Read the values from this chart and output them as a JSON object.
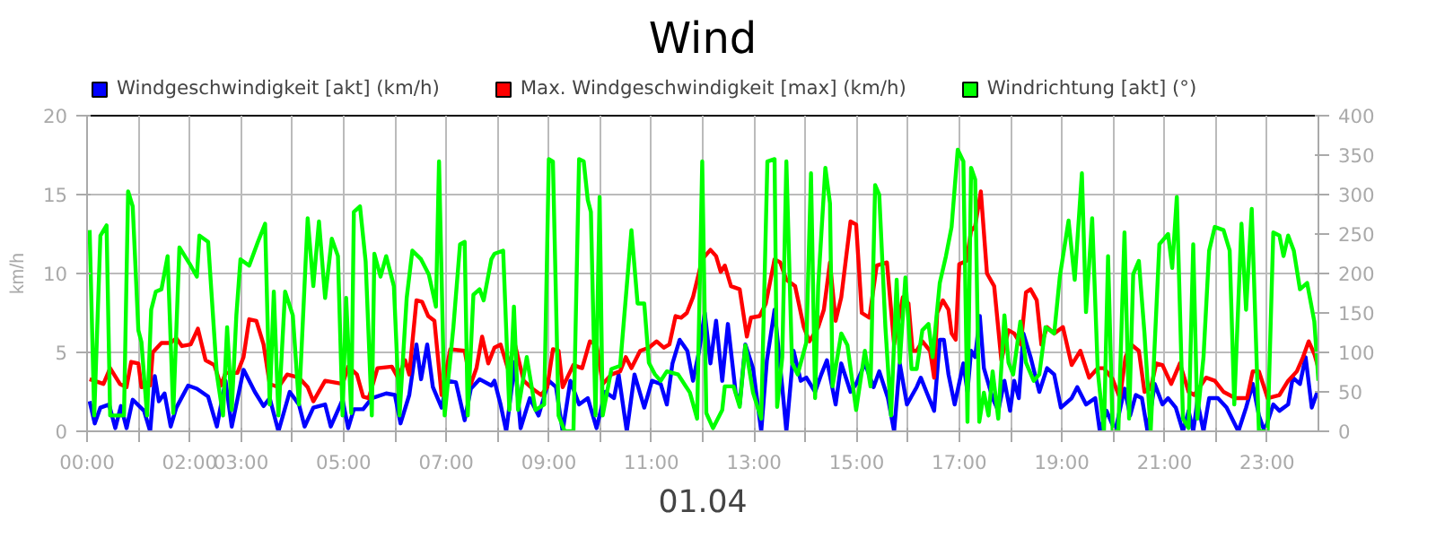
{
  "chart_data": {
    "type": "line",
    "title": "Wind",
    "xlabel": "01.04",
    "ylabel": "km/h",
    "xlim": [
      0,
      24
    ],
    "xticks": [
      {
        "value": 0,
        "label": "00:00"
      },
      {
        "value": 1,
        "label": null
      },
      {
        "value": 2,
        "label": "02:00"
      },
      {
        "value": 3,
        "label": "03:00"
      },
      {
        "value": 4,
        "label": null
      },
      {
        "value": 5,
        "label": "05:00"
      },
      {
        "value": 6,
        "label": null
      },
      {
        "value": 7,
        "label": "07:00"
      },
      {
        "value": 8,
        "label": null
      },
      {
        "value": 9,
        "label": "09:00"
      },
      {
        "value": 10,
        "label": null
      },
      {
        "value": 11,
        "label": "11:00"
      },
      {
        "value": 12,
        "label": null
      },
      {
        "value": 13,
        "label": "13:00"
      },
      {
        "value": 14,
        "label": null
      },
      {
        "value": 15,
        "label": "15:00"
      },
      {
        "value": 16,
        "label": null
      },
      {
        "value": 17,
        "label": "17:00"
      },
      {
        "value": 18,
        "label": null
      },
      {
        "value": 19,
        "label": "19:00"
      },
      {
        "value": 20,
        "label": null
      },
      {
        "value": 21,
        "label": "21:00"
      },
      {
        "value": 22,
        "label": null
      },
      {
        "value": 23,
        "label": "23:00"
      }
    ],
    "ylim": [
      0,
      20
    ],
    "yticks": [
      0,
      5,
      10,
      15,
      20
    ],
    "y2lim": [
      0,
      400
    ],
    "y2ticks": [
      0,
      50,
      100,
      150,
      200,
      250,
      300,
      350,
      400
    ],
    "grid": true,
    "legend": "top left",
    "line_style": "solid",
    "series": [
      {
        "name": "Windgeschwindigkeit [akt] (km/h)",
        "color": "#0000ff",
        "x": [
          0.05,
          0.15,
          0.26,
          0.43,
          0.55,
          0.66,
          0.77,
          0.89,
          1.11,
          1.23,
          1.32,
          1.4,
          1.51,
          1.63,
          1.74,
          1.97,
          2.14,
          2.36,
          2.53,
          2.7,
          2.82,
          3.05,
          3.27,
          3.44,
          3.56,
          3.73,
          3.95,
          4.13,
          4.24,
          4.41,
          4.64,
          4.75,
          4.98,
          5.09,
          5.2,
          5.38,
          5.55,
          5.83,
          6.0,
          6.11,
          6.28,
          6.42,
          6.51,
          6.63,
          6.74,
          6.91,
          7.02,
          7.19,
          7.36,
          7.48,
          7.65,
          7.88,
          7.94,
          8.06,
          8.17,
          8.34,
          8.45,
          8.63,
          8.8,
          9.0,
          9.14,
          9.27,
          9.42,
          9.59,
          9.76,
          9.93,
          10.1,
          10.27,
          10.36,
          10.52,
          10.67,
          10.86,
          11.01,
          11.18,
          11.3,
          11.41,
          11.55,
          11.7,
          11.81,
          11.93,
          12.04,
          12.15,
          12.26,
          12.38,
          12.49,
          12.64,
          12.72,
          12.83,
          12.98,
          13.14,
          13.25,
          13.4,
          13.55,
          13.63,
          13.77,
          13.91,
          14.02,
          14.19,
          14.31,
          14.42,
          14.59,
          14.7,
          14.88,
          14.99,
          15.16,
          15.33,
          15.44,
          15.61,
          15.73,
          15.84,
          15.98,
          16.17,
          16.25,
          16.36,
          16.51,
          16.62,
          16.7,
          16.79,
          16.91,
          17.08,
          17.16,
          17.23,
          17.31,
          17.4,
          17.48,
          17.65,
          17.76,
          17.88,
          17.99,
          18.07,
          18.16,
          18.25,
          18.39,
          18.56,
          18.71,
          18.85,
          18.98,
          19.19,
          19.3,
          19.47,
          19.65,
          19.74,
          19.87,
          20.04,
          20.22,
          20.33,
          20.44,
          20.56,
          20.67,
          20.81,
          20.96,
          21.07,
          21.22,
          21.36,
          21.47,
          21.56,
          21.64,
          21.76,
          21.87,
          22.04,
          22.21,
          22.44,
          22.59,
          22.72,
          22.84,
          22.95,
          23.12,
          23.24,
          23.41,
          23.5,
          23.64,
          23.75,
          23.87,
          23.98
        ],
        "values": [
          1.9,
          0.5,
          1.5,
          1.7,
          0.2,
          1.6,
          0.2,
          2.0,
          1.3,
          0,
          3.5,
          1.9,
          2.4,
          0.3,
          1.5,
          2.9,
          2.7,
          2.2,
          0.3,
          3.2,
          0.3,
          3.9,
          2.5,
          1.6,
          2.1,
          0,
          2.5,
          1.7,
          0.3,
          1.5,
          1.7,
          0.3,
          2.0,
          0.2,
          1.4,
          1.4,
          2.1,
          2.4,
          2.3,
          0.5,
          2.3,
          5.5,
          3.3,
          5.5,
          2.8,
          1.5,
          3.2,
          3.1,
          0.7,
          2.7,
          3.3,
          2.9,
          3.2,
          1.7,
          0,
          4.4,
          0.2,
          2.1,
          1.0,
          3.2,
          2.8,
          0,
          3.2,
          1.7,
          2.1,
          0.2,
          2.5,
          2.1,
          3.6,
          0,
          3.6,
          1.5,
          3.2,
          3.0,
          1.7,
          4.3,
          5.8,
          5.1,
          3.2,
          5.1,
          7.5,
          4.3,
          7.0,
          3.2,
          6.8,
          2.5,
          1.7,
          5.5,
          4.0,
          0,
          4.5,
          7.7,
          2.8,
          0,
          5.1,
          3.2,
          3.4,
          2.5,
          3.6,
          4.5,
          1.7,
          4.3,
          2.5,
          3.0,
          4.3,
          2.8,
          3.8,
          2.1,
          0,
          4.3,
          1.7,
          2.8,
          3.4,
          2.5,
          1.3,
          5.8,
          5.8,
          3.6,
          1.7,
          4.3,
          2.5,
          5.1,
          4.7,
          7.3,
          4.0,
          2.1,
          1.3,
          3.2,
          1.3,
          3.2,
          2.1,
          6.2,
          4.7,
          2.5,
          4.0,
          3.6,
          1.5,
          2.1,
          2.8,
          1.7,
          2.1,
          0,
          1.3,
          0,
          2.7,
          1.0,
          2.3,
          2.1,
          0,
          3.0,
          1.7,
          2.1,
          1.5,
          0,
          1.3,
          0,
          1.9,
          0,
          2.1,
          2.1,
          1.5,
          0,
          1.5,
          3.0,
          1.0,
          0,
          1.7,
          1.3,
          1.7,
          3.4,
          3.0,
          4.7,
          1.5,
          2.5
        ]
      },
      {
        "name": "Max. Windgeschwindigkeit [max] (km/h)",
        "color": "#ff0000",
        "x": [
          0.05,
          0.32,
          0.45,
          0.64,
          0.77,
          0.86,
          1.0,
          1.06,
          1.23,
          1.28,
          1.45,
          1.63,
          1.74,
          1.85,
          2.02,
          2.16,
          2.31,
          2.48,
          2.61,
          2.7,
          2.93,
          3.05,
          3.16,
          3.3,
          3.44,
          3.56,
          3.73,
          3.9,
          4.13,
          4.3,
          4.41,
          4.64,
          4.81,
          4.98,
          5.09,
          5.26,
          5.38,
          5.49,
          5.66,
          5.94,
          6.06,
          6.2,
          6.28,
          6.42,
          6.53,
          6.65,
          6.77,
          6.91,
          7.08,
          7.36,
          7.48,
          7.59,
          7.7,
          7.82,
          7.94,
          8.06,
          8.2,
          8.34,
          8.51,
          8.68,
          8.85,
          8.97,
          9.08,
          9.19,
          9.27,
          9.48,
          9.65,
          9.8,
          9.93,
          10.05,
          10.22,
          10.39,
          10.5,
          10.61,
          10.78,
          10.95,
          11.1,
          11.24,
          11.35,
          11.47,
          11.58,
          11.69,
          11.81,
          11.99,
          12.15,
          12.26,
          12.35,
          12.43,
          12.55,
          12.72,
          12.86,
          12.94,
          13.11,
          13.23,
          13.4,
          13.51,
          13.63,
          13.8,
          13.97,
          14.08,
          14.25,
          14.36,
          14.48,
          14.59,
          14.7,
          14.88,
          14.99,
          15.1,
          15.25,
          15.39,
          15.59,
          15.73,
          15.9,
          16.01,
          16.09,
          16.17,
          16.28,
          16.43,
          16.51,
          16.57,
          16.68,
          16.79,
          16.85,
          16.93,
          17.0,
          17.14,
          17.23,
          17.31,
          17.42,
          17.54,
          17.68,
          17.82,
          17.96,
          18.07,
          18.2,
          18.3,
          18.39,
          18.51,
          18.6,
          18.71,
          18.85,
          19.02,
          19.19,
          19.36,
          19.53,
          19.7,
          19.82,
          19.99,
          20.13,
          20.24,
          20.35,
          20.5,
          20.61,
          20.73,
          20.84,
          20.96,
          21.13,
          21.3,
          21.47,
          21.58,
          21.81,
          21.98,
          22.15,
          22.38,
          22.61,
          22.72,
          22.84,
          23.01,
          23.24,
          23.41,
          23.58,
          23.7,
          23.81,
          23.92,
          24.0
        ],
        "values": [
          3.3,
          3.0,
          4.0,
          3.0,
          2.8,
          4.4,
          4.3,
          2.8,
          2.9,
          5.0,
          5.6,
          5.6,
          5.9,
          5.4,
          5.5,
          6.5,
          4.5,
          4.2,
          2.9,
          3.7,
          3.7,
          4.7,
          7.1,
          7.0,
          5.5,
          3.0,
          2.8,
          3.6,
          3.4,
          2.8,
          1.9,
          3.2,
          3.1,
          3.0,
          4.1,
          3.6,
          2.2,
          2.1,
          4.0,
          4.1,
          3.4,
          4.5,
          3.6,
          8.3,
          8.2,
          7.3,
          7.0,
          2.3,
          5.2,
          5.1,
          3.0,
          4.0,
          6.0,
          4.3,
          5.3,
          5.5,
          4.0,
          5.5,
          3.2,
          2.7,
          2.3,
          2.8,
          5.2,
          5.1,
          2.8,
          4.2,
          4.0,
          5.7,
          5.5,
          3.0,
          3.6,
          3.8,
          4.7,
          4.0,
          5.1,
          5.3,
          5.7,
          5.3,
          5.5,
          7.3,
          7.2,
          7.5,
          8.5,
          10.9,
          11.5,
          11.1,
          10.1,
          10.5,
          9.2,
          9.0,
          6.0,
          7.2,
          7.3,
          8.1,
          10.9,
          10.7,
          9.6,
          9.2,
          6.6,
          5.7,
          6.6,
          7.7,
          10.7,
          7.0,
          8.5,
          13.3,
          13.1,
          7.5,
          7.2,
          10.5,
          10.7,
          5.5,
          8.5,
          8.1,
          5.1,
          5.1,
          5.7,
          5.1,
          3.4,
          7.5,
          8.3,
          7.7,
          6.2,
          5.8,
          10.6,
          10.8,
          12.7,
          13.0,
          15.2,
          10.0,
          9.2,
          4.5,
          6.4,
          6.2,
          5.5,
          8.8,
          9.0,
          8.3,
          5.5,
          6.6,
          6.2,
          6.6,
          4.2,
          5.1,
          3.4,
          4.0,
          4.0,
          3.3,
          2.1,
          4.7,
          5.5,
          5.1,
          2.5,
          2.7,
          4.3,
          4.2,
          3.0,
          4.3,
          2.5,
          2.3,
          3.4,
          3.2,
          2.5,
          2.1,
          2.1,
          3.8,
          3.8,
          2.1,
          2.3,
          3.2,
          3.8,
          4.7,
          5.7,
          4.9,
          4.0
        ]
      },
      {
        "name": "Windrichtung [akt] (°)",
        "color": "#00ff00",
        "axis": "y2",
        "x": [
          0.05,
          0.14,
          0.26,
          0.38,
          0.45,
          0.6,
          0.72,
          0.8,
          0.89,
          1.0,
          1.06,
          1.17,
          1.25,
          1.34,
          1.45,
          1.57,
          1.68,
          1.8,
          2.02,
          2.14,
          2.19,
          2.36,
          2.53,
          2.65,
          2.73,
          2.82,
          2.91,
          2.99,
          3.16,
          3.33,
          3.47,
          3.56,
          3.64,
          3.73,
          3.86,
          4.01,
          4.13,
          4.3,
          4.41,
          4.52,
          4.64,
          4.77,
          4.89,
          4.98,
          5.05,
          5.15,
          5.2,
          5.32,
          5.43,
          5.55,
          5.6,
          5.72,
          5.83,
          5.98,
          6.09,
          6.23,
          6.34,
          6.51,
          6.66,
          6.8,
          6.86,
          6.97,
          7.14,
          7.27,
          7.36,
          7.42,
          7.53,
          7.65,
          7.73,
          7.88,
          7.94,
          8.11,
          8.23,
          8.32,
          8.4,
          8.57,
          8.74,
          8.91,
          9.0,
          9.08,
          9.19,
          9.31,
          9.48,
          9.59,
          9.68,
          9.76,
          9.82,
          9.91,
          9.99,
          10.05,
          10.22,
          10.39,
          10.61,
          10.73,
          10.86,
          10.95,
          11.07,
          11.18,
          11.3,
          11.52,
          11.75,
          11.89,
          11.99,
          12.07,
          12.2,
          12.38,
          12.43,
          12.6,
          12.72,
          12.83,
          12.98,
          13.14,
          13.26,
          13.4,
          13.45,
          13.55,
          13.63,
          13.74,
          13.85,
          14.02,
          14.11,
          14.19,
          14.25,
          14.39,
          14.48,
          14.53,
          14.7,
          14.82,
          14.99,
          15.16,
          15.27,
          15.36,
          15.44,
          15.56,
          15.67,
          15.78,
          15.84,
          15.95,
          16.07,
          16.17,
          16.28,
          16.4,
          16.48,
          16.62,
          16.74,
          16.85,
          16.97,
          17.08,
          17.16,
          17.23,
          17.31,
          17.39,
          17.48,
          17.57,
          17.65,
          17.76,
          17.88,
          17.96,
          18.05,
          18.19,
          18.3,
          18.45,
          18.56,
          18.68,
          18.85,
          18.96,
          19.13,
          19.25,
          19.39,
          19.47,
          19.59,
          19.7,
          19.82,
          19.9,
          19.99,
          20.1,
          20.22,
          20.31,
          20.39,
          20.5,
          20.61,
          20.73,
          20.9,
          21.07,
          21.15,
          21.24,
          21.36,
          21.47,
          21.56,
          21.64,
          21.76,
          21.87,
          21.98,
          22.15,
          22.27,
          22.36,
          22.5,
          22.59,
          22.7,
          22.84,
          23.01,
          23.12,
          23.24,
          23.32,
          23.41,
          23.52,
          23.64,
          23.78,
          23.92,
          24.0
        ],
        "values": [
          255,
          20,
          248,
          261,
          20,
          20,
          20,
          304,
          285,
          128,
          113,
          20,
          154,
          177,
          180,
          222,
          23,
          233,
          210,
          196,
          248,
          240,
          72,
          20,
          132,
          27,
          147,
          218,
          210,
          240,
          263,
          34,
          177,
          20,
          177,
          147,
          34,
          270,
          184,
          266,
          169,
          244,
          222,
          20,
          169,
          23,
          278,
          285,
          215,
          20,
          225,
          196,
          222,
          184,
          20,
          169,
          229,
          218,
          199,
          158,
          342,
          20,
          132,
          237,
          240,
          20,
          173,
          180,
          166,
          218,
          225,
          229,
          27,
          158,
          27,
          94,
          27,
          34,
          345,
          342,
          20,
          0,
          0,
          345,
          342,
          293,
          278,
          20,
          297,
          20,
          79,
          83,
          255,
          162,
          162,
          87,
          72,
          64,
          76,
          72,
          49,
          16,
          342,
          23,
          4,
          27,
          57,
          57,
          31,
          109,
          49,
          16,
          342,
          345,
          31,
          94,
          342,
          87,
          72,
          113,
          327,
          42,
          184,
          334,
          289,
          57,
          124,
          109,
          27,
          102,
          57,
          312,
          300,
          132,
          20,
          192,
          87,
          195,
          79,
          79,
          128,
          136,
          94,
          188,
          222,
          259,
          357,
          342,
          12,
          334,
          319,
          12,
          49,
          20,
          76,
          16,
          147,
          87,
          72,
          139,
          87,
          64,
          72,
          132,
          124,
          196,
          267,
          192,
          327,
          151,
          270,
          76,
          0,
          222,
          0,
          0,
          252,
          16,
          199,
          216,
          124,
          0,
          237,
          250,
          207,
          297,
          16,
          4,
          237,
          16,
          94,
          229,
          259,
          255,
          229,
          34,
          263,
          154,
          282,
          0,
          0,
          252,
          248,
          222,
          248,
          229,
          180,
          188,
          139,
          64
        ]
      }
    ]
  }
}
